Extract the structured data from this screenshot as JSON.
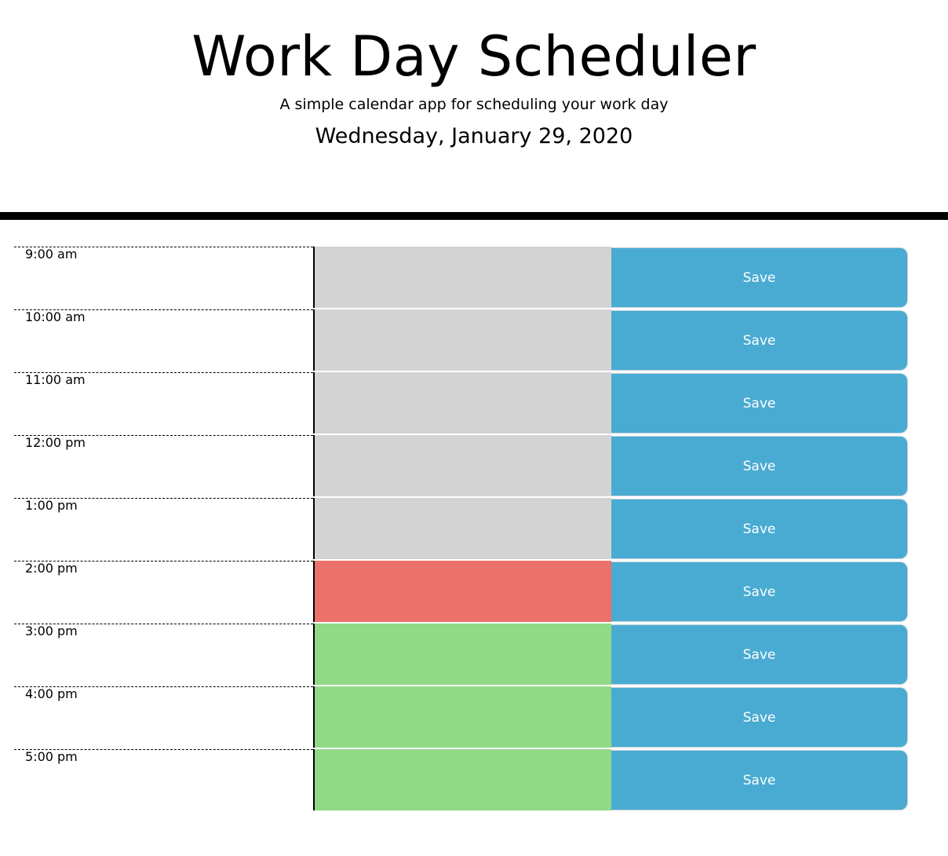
{
  "header": {
    "title": "Work Day Scheduler",
    "subtitle": "A simple calendar app for scheduling your work day",
    "current_day": "Wednesday, January 29, 2020"
  },
  "colors": {
    "past": "#d3d3d3",
    "present": "#ec716a",
    "future": "#92d985",
    "save_button": "#4aabd2"
  },
  "time_blocks": [
    {
      "hour": "9:00 am",
      "status": "past",
      "text": "",
      "save_label": "Save"
    },
    {
      "hour": "10:00 am",
      "status": "past",
      "text": "",
      "save_label": "Save"
    },
    {
      "hour": "11:00 am",
      "status": "past",
      "text": "",
      "save_label": "Save"
    },
    {
      "hour": "12:00 pm",
      "status": "past",
      "text": "",
      "save_label": "Save"
    },
    {
      "hour": "1:00 pm",
      "status": "past",
      "text": "",
      "save_label": "Save"
    },
    {
      "hour": "2:00 pm",
      "status": "present",
      "text": "",
      "save_label": "Save"
    },
    {
      "hour": "3:00 pm",
      "status": "future",
      "text": "",
      "save_label": "Save"
    },
    {
      "hour": "4:00 pm",
      "status": "future",
      "text": "",
      "save_label": "Save"
    },
    {
      "hour": "5:00 pm",
      "status": "future",
      "text": "",
      "save_label": "Save"
    }
  ]
}
